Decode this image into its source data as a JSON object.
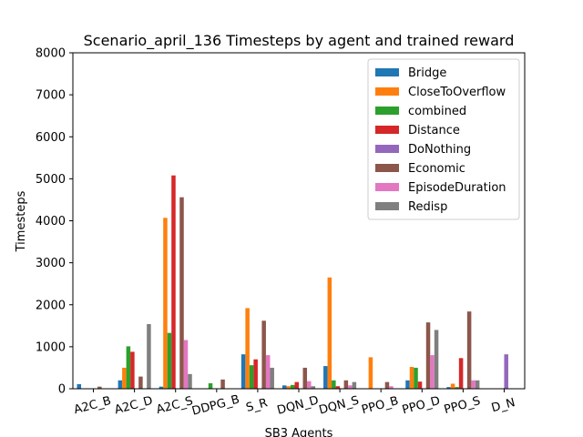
{
  "chart_data": {
    "type": "bar",
    "title": "Scenario_april_136 Timesteps by agent and trained reward",
    "xlabel": "SB3 Agents",
    "ylabel": "Timesteps",
    "ylim": [
      0,
      8000
    ],
    "yticks": [
      0,
      1000,
      2000,
      3000,
      4000,
      5000,
      6000,
      7000,
      8000
    ],
    "grid": false,
    "legend_position": "top-right",
    "categories": [
      "A2C_B",
      "A2C_D",
      "A2C_S",
      "DDPG_B",
      "S_R",
      "DQN_D",
      "DQN_S",
      "PPO_B",
      "PPO_D",
      "PPO_S",
      "D_N"
    ],
    "series": [
      {
        "name": "Bridge",
        "color": "#1f77b4",
        "values": [
          110,
          200,
          50,
          0,
          820,
          80,
          540,
          0,
          200,
          40,
          0
        ]
      },
      {
        "name": "CloseToOverflow",
        "color": "#ff7f0e",
        "values": [
          0,
          500,
          4070,
          0,
          1920,
          60,
          2650,
          750,
          520,
          120,
          0
        ]
      },
      {
        "name": "combined",
        "color": "#2ca02c",
        "values": [
          0,
          1010,
          1330,
          130,
          560,
          90,
          200,
          0,
          500,
          40,
          0
        ]
      },
      {
        "name": "Distance",
        "color": "#d62728",
        "values": [
          0,
          880,
          5080,
          0,
          700,
          160,
          60,
          0,
          170,
          730,
          0
        ]
      },
      {
        "name": "DoNothing",
        "color": "#9467bd",
        "values": [
          0,
          0,
          0,
          0,
          0,
          0,
          0,
          0,
          0,
          0,
          820
        ]
      },
      {
        "name": "Economic",
        "color": "#8c564b",
        "values": [
          50,
          290,
          4560,
          220,
          1620,
          500,
          200,
          160,
          1580,
          1840,
          0
        ]
      },
      {
        "name": "EpisodeDuration",
        "color": "#e377c2",
        "values": [
          0,
          0,
          1160,
          0,
          800,
          180,
          80,
          60,
          800,
          200,
          0
        ]
      },
      {
        "name": "Redisp",
        "color": "#7f7f7f",
        "values": [
          0,
          1540,
          350,
          0,
          500,
          60,
          160,
          0,
          1400,
          200,
          0
        ]
      }
    ]
  }
}
